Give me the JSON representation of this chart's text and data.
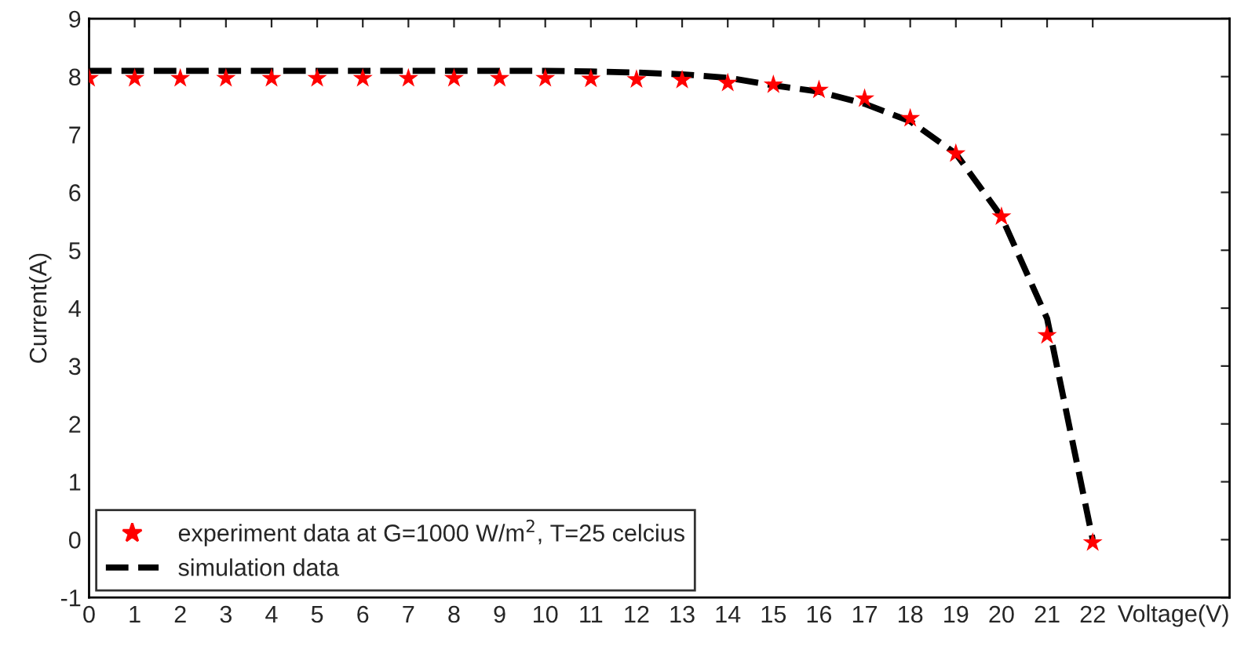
{
  "chart_data": {
    "type": "line",
    "xlabel": "Voltage(V)",
    "ylabel": "Current(A)",
    "xlim": [
      0,
      25
    ],
    "xticks": [
      0,
      1,
      2,
      3,
      4,
      5,
      6,
      7,
      8,
      9,
      10,
      11,
      12,
      13,
      14,
      15,
      16,
      17,
      18,
      19,
      20,
      21,
      22
    ],
    "ylim": [
      -1,
      9
    ],
    "yticks": [
      -1,
      0,
      1,
      2,
      3,
      4,
      5,
      6,
      7,
      8,
      9
    ],
    "grid": false,
    "legend": "bottom left",
    "series": [
      {
        "name": "experiment data at G=1000 W/m$^{2}$, T=25 celcius",
        "type": "scatter",
        "marker": "star",
        "color": "#ff0000",
        "x": [
          0,
          1,
          2,
          3,
          4,
          5,
          6,
          7,
          8,
          9,
          10,
          11,
          12,
          13,
          14,
          15,
          16,
          17,
          18,
          19,
          20,
          21,
          22
        ],
        "values": [
          7.97,
          7.97,
          7.97,
          7.97,
          7.97,
          7.97,
          7.97,
          7.97,
          7.97,
          7.97,
          7.97,
          7.96,
          7.95,
          7.94,
          7.89,
          7.86,
          7.77,
          7.62,
          7.28,
          6.67,
          5.58,
          3.53,
          -0.05
        ]
      },
      {
        "name": "simulation data",
        "line_style": "dashed",
        "marker": "none",
        "color": "#000000",
        "x": [
          0,
          1,
          2,
          3,
          4,
          5,
          6,
          7,
          8,
          9,
          10,
          11,
          12,
          13,
          14,
          15,
          16,
          17,
          18,
          19,
          20,
          21,
          22
        ],
        "values": [
          8.1,
          8.1,
          8.1,
          8.1,
          8.1,
          8.1,
          8.1,
          8.1,
          8.1,
          8.1,
          8.1,
          8.09,
          8.07,
          8.04,
          7.98,
          7.85,
          7.74,
          7.53,
          7.23,
          6.67,
          5.58,
          3.82,
          0
        ]
      }
    ]
  }
}
